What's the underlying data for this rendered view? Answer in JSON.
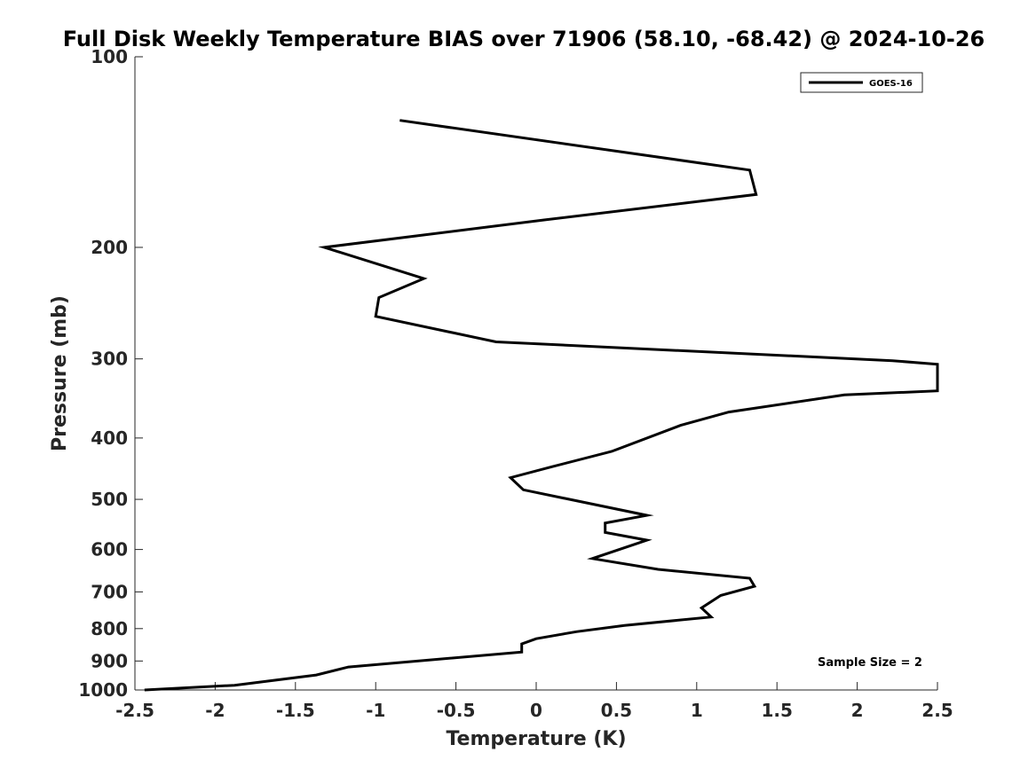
{
  "chart_data": {
    "type": "line",
    "title": "Full Disk Weekly Temperature BIAS over 71906 (58.10, -68.42) @ 2024-10-26",
    "xlabel": "Temperature (K)",
    "ylabel": "Pressure (mb)",
    "xlim": [
      -2.5,
      2.5
    ],
    "ylim": [
      100,
      1000
    ],
    "yscale": "log",
    "y_reversed": true,
    "x_ticks": [
      "-2.5",
      "-2",
      "-1.5",
      "-1",
      "-0.5",
      "0",
      "0.5",
      "1",
      "1.5",
      "2",
      "2.5"
    ],
    "y_ticks": [
      "100",
      "200",
      "300",
      "400",
      "500",
      "600",
      "700",
      "800",
      "900",
      "1000"
    ],
    "grid": false,
    "legend": {
      "position": "top-right",
      "entries": [
        "GOES-16"
      ]
    },
    "annotation": "Sample Size = 2",
    "series": [
      {
        "name": "GOES-16",
        "color": "#000000",
        "points": [
          [
            -0.85,
            126
          ],
          [
            1.33,
            151
          ],
          [
            1.37,
            165
          ],
          [
            0.05,
            181
          ],
          [
            -1.32,
            200
          ],
          [
            -0.7,
            224
          ],
          [
            -0.98,
            240
          ],
          [
            -1.0,
            257
          ],
          [
            -0.25,
            282
          ],
          [
            2.22,
            302
          ],
          [
            2.5,
            306
          ],
          [
            2.5,
            337
          ],
          [
            1.92,
            342
          ],
          [
            1.2,
            364
          ],
          [
            0.9,
            382
          ],
          [
            0.47,
            420
          ],
          [
            0.1,
            444
          ],
          [
            -0.16,
            462
          ],
          [
            -0.08,
            483
          ],
          [
            0.69,
            530
          ],
          [
            0.43,
            545
          ],
          [
            0.43,
            564
          ],
          [
            0.69,
            580
          ],
          [
            0.35,
            620
          ],
          [
            0.76,
            645
          ],
          [
            1.33,
            666
          ],
          [
            1.36,
            686
          ],
          [
            1.15,
            709
          ],
          [
            1.03,
            742
          ],
          [
            1.09,
            767
          ],
          [
            0.55,
            791
          ],
          [
            0.25,
            809
          ],
          [
            0.0,
            830
          ],
          [
            -0.09,
            846
          ],
          [
            -0.09,
            871
          ],
          [
            -1.17,
            920
          ],
          [
            -1.37,
            947
          ],
          [
            -1.88,
            983
          ],
          [
            -2.44,
            1000
          ]
        ]
      }
    ]
  }
}
